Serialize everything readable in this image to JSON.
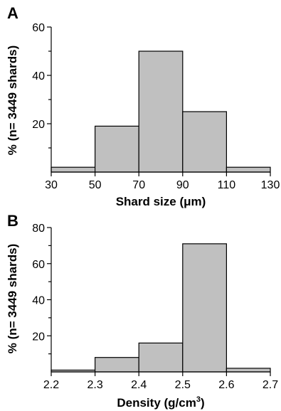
{
  "chart_data": [
    {
      "type": "bar",
      "panel": "A",
      "xlabel": "Shard size (μm)",
      "ylabel": "% (n= 3449 shards)",
      "x_ticks": [
        30,
        50,
        70,
        90,
        110,
        130
      ],
      "y_ticks_labeled": [
        20,
        40,
        60
      ],
      "y_ticks_minor": [
        10,
        30,
        50
      ],
      "xlim": [
        30,
        130
      ],
      "ylim": [
        0,
        60
      ],
      "bins": [
        [
          30,
          50
        ],
        [
          50,
          70
        ],
        [
          70,
          90
        ],
        [
          90,
          110
        ],
        [
          110,
          130
        ]
      ],
      "values": [
        2,
        19,
        50,
        25,
        2
      ],
      "bar_color": "#c0c0c0"
    },
    {
      "type": "bar",
      "panel": "B",
      "xlabel": "Density (g/cm",
      "xlabel_sup": "3",
      "xlabel_end": ")",
      "ylabel": "% (n= 3449 shards)",
      "x_ticks": [
        "2.2",
        "2.3",
        "2.4",
        "2.5",
        "2.6",
        "2.7"
      ],
      "x_tick_values": [
        2.2,
        2.3,
        2.4,
        2.5,
        2.6,
        2.7
      ],
      "y_ticks_labeled": [
        20,
        40,
        60,
        80
      ],
      "y_ticks_minor": [
        10,
        30,
        50,
        70
      ],
      "xlim": [
        2.2,
        2.7
      ],
      "ylim": [
        0,
        80
      ],
      "bins": [
        [
          2.2,
          2.3
        ],
        [
          2.3,
          2.4
        ],
        [
          2.4,
          2.5
        ],
        [
          2.5,
          2.6
        ],
        [
          2.6,
          2.7
        ]
      ],
      "values": [
        1,
        8,
        16,
        71,
        2
      ],
      "bar_color": "#c0c0c0"
    }
  ]
}
